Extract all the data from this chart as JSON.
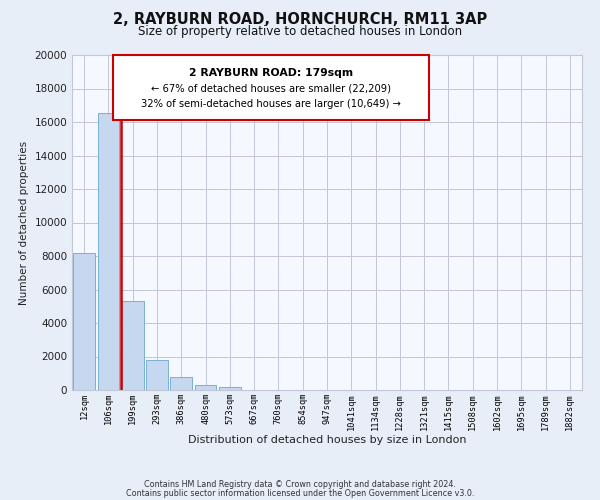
{
  "title": "2, RAYBURN ROAD, HORNCHURCH, RM11 3AP",
  "subtitle": "Size of property relative to detached houses in London",
  "xlabel": "Distribution of detached houses by size in London",
  "ylabel": "Number of detached properties",
  "categories": [
    "12sqm",
    "106sqm",
    "199sqm",
    "293sqm",
    "386sqm",
    "480sqm",
    "573sqm",
    "667sqm",
    "760sqm",
    "854sqm",
    "947sqm",
    "1041sqm",
    "1134sqm",
    "1228sqm",
    "1321sqm",
    "1415sqm",
    "1508sqm",
    "1602sqm",
    "1695sqm",
    "1789sqm",
    "1882sqm"
  ],
  "values": [
    8200,
    16550,
    5300,
    1800,
    750,
    300,
    200,
    0,
    0,
    0,
    0,
    0,
    0,
    0,
    0,
    0,
    0,
    0,
    0,
    0,
    0
  ],
  "bar_color": "#c5d8f0",
  "bar_edge_color": "#7aafd4",
  "vline_color": "#cc0000",
  "vline_idx": 1.5,
  "annotation_title": "2 RAYBURN ROAD: 179sqm",
  "annotation_line1": "← 67% of detached houses are smaller (22,209)",
  "annotation_line2": "32% of semi-detached houses are larger (10,649) →",
  "ylim": [
    0,
    20000
  ],
  "yticks": [
    0,
    2000,
    4000,
    6000,
    8000,
    10000,
    12000,
    14000,
    16000,
    18000,
    20000
  ],
  "footer1": "Contains HM Land Registry data © Crown copyright and database right 2024.",
  "footer2": "Contains public sector information licensed under the Open Government Licence v3.0.",
  "bg_color": "#e8eef8",
  "plot_bg_color": "#f5f8ff",
  "grid_color": "#c0c8d8"
}
